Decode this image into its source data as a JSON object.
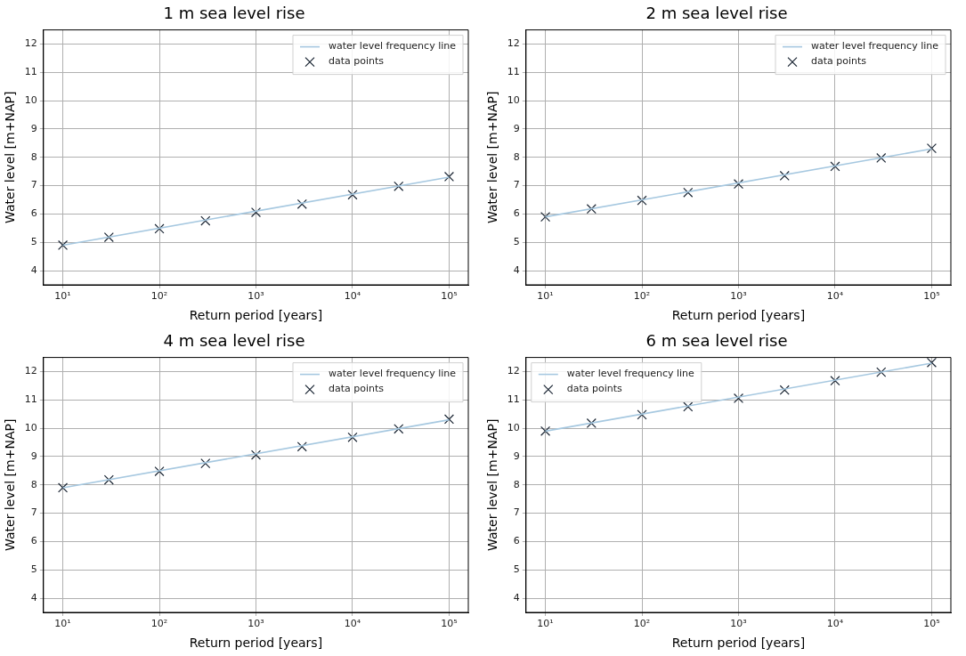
{
  "chart_data": [
    {
      "type": "scatter",
      "title": "1 m sea level rise",
      "xlabel": "Return period [years]",
      "ylabel": "Water level [m+NAP]",
      "log": "x",
      "grid": true,
      "legend": "top right",
      "xlim": [
        6.3,
        158000
      ],
      "ylim": [
        3.5,
        12.5
      ],
      "xticks": [
        {
          "value": 10,
          "label": "10¹"
        },
        {
          "value": 100,
          "label": "10²"
        },
        {
          "value": 1000,
          "label": "10³"
        },
        {
          "value": 10000,
          "label": "10⁴"
        },
        {
          "value": 100000,
          "label": "10⁵"
        }
      ],
      "yticks": [
        4,
        5,
        6,
        7,
        8,
        9,
        10,
        11,
        12
      ],
      "series": [
        {
          "name": "water level frequency line",
          "type": "line",
          "line_style": "solid",
          "color": "#a6c8e0",
          "x": [
            10,
            100000
          ],
          "values": [
            4.9,
            7.3
          ]
        },
        {
          "name": "data points",
          "marker": "cross",
          "color": "#1a2533",
          "x": [
            10,
            30,
            100,
            300,
            1000,
            3000,
            10000,
            30000,
            100000
          ],
          "values": [
            4.9,
            5.18,
            5.48,
            5.76,
            6.06,
            6.35,
            6.68,
            6.98,
            7.32
          ]
        }
      ]
    },
    {
      "type": "scatter",
      "title": "2 m sea level rise",
      "xlabel": "Return period [years]",
      "ylabel": "Water level [m+NAP]",
      "log": "x",
      "grid": true,
      "legend": "top right",
      "xlim": [
        6.3,
        158000
      ],
      "ylim": [
        3.5,
        12.5
      ],
      "xticks": [
        {
          "value": 10,
          "label": "10¹"
        },
        {
          "value": 100,
          "label": "10²"
        },
        {
          "value": 1000,
          "label": "10³"
        },
        {
          "value": 10000,
          "label": "10⁴"
        },
        {
          "value": 100000,
          "label": "10⁵"
        }
      ],
      "yticks": [
        4,
        5,
        6,
        7,
        8,
        9,
        10,
        11,
        12
      ],
      "series": [
        {
          "name": "water level frequency line",
          "type": "line",
          "line_style": "solid",
          "color": "#a6c8e0",
          "x": [
            10,
            100000
          ],
          "values": [
            5.9,
            8.3
          ]
        },
        {
          "name": "data points",
          "marker": "cross",
          "color": "#1a2533",
          "x": [
            10,
            30,
            100,
            300,
            1000,
            3000,
            10000,
            30000,
            100000
          ],
          "values": [
            5.9,
            6.18,
            6.48,
            6.76,
            7.06,
            7.35,
            7.68,
            7.98,
            8.32
          ]
        }
      ]
    },
    {
      "type": "scatter",
      "title": "4 m sea level rise",
      "xlabel": "Return period [years]",
      "ylabel": "Water level [m+NAP]",
      "log": "x",
      "grid": true,
      "legend": "top right",
      "xlim": [
        6.3,
        158000
      ],
      "ylim": [
        3.5,
        12.5
      ],
      "xticks": [
        {
          "value": 10,
          "label": "10¹"
        },
        {
          "value": 100,
          "label": "10²"
        },
        {
          "value": 1000,
          "label": "10³"
        },
        {
          "value": 10000,
          "label": "10⁴"
        },
        {
          "value": 100000,
          "label": "10⁵"
        }
      ],
      "yticks": [
        4,
        5,
        6,
        7,
        8,
        9,
        10,
        11,
        12
      ],
      "series": [
        {
          "name": "water level frequency line",
          "type": "line",
          "line_style": "solid",
          "color": "#a6c8e0",
          "x": [
            10,
            100000
          ],
          "values": [
            7.9,
            10.3
          ]
        },
        {
          "name": "data points",
          "marker": "cross",
          "color": "#1a2533",
          "x": [
            10,
            30,
            100,
            300,
            1000,
            3000,
            10000,
            30000,
            100000
          ],
          "values": [
            7.9,
            8.18,
            8.48,
            8.76,
            9.06,
            9.35,
            9.68,
            9.98,
            10.32
          ]
        }
      ]
    },
    {
      "type": "scatter",
      "title": "6 m sea level rise",
      "xlabel": "Return period [years]",
      "ylabel": "Water level [m+NAP]",
      "log": "x",
      "grid": true,
      "legend": "top left",
      "xlim": [
        6.3,
        158000
      ],
      "ylim": [
        3.5,
        12.5
      ],
      "xticks": [
        {
          "value": 10,
          "label": "10¹"
        },
        {
          "value": 100,
          "label": "10²"
        },
        {
          "value": 1000,
          "label": "10³"
        },
        {
          "value": 10000,
          "label": "10⁴"
        },
        {
          "value": 100000,
          "label": "10⁵"
        }
      ],
      "yticks": [
        4,
        5,
        6,
        7,
        8,
        9,
        10,
        11,
        12
      ],
      "series": [
        {
          "name": "water level frequency line",
          "type": "line",
          "line_style": "solid",
          "color": "#a6c8e0",
          "x": [
            10,
            100000
          ],
          "values": [
            9.9,
            12.3
          ]
        },
        {
          "name": "data points",
          "marker": "cross",
          "color": "#1a2533",
          "x": [
            10,
            30,
            100,
            300,
            1000,
            3000,
            10000,
            30000,
            100000
          ],
          "values": [
            9.9,
            10.18,
            10.48,
            10.76,
            11.06,
            11.35,
            11.68,
            11.98,
            12.32
          ]
        }
      ]
    }
  ]
}
